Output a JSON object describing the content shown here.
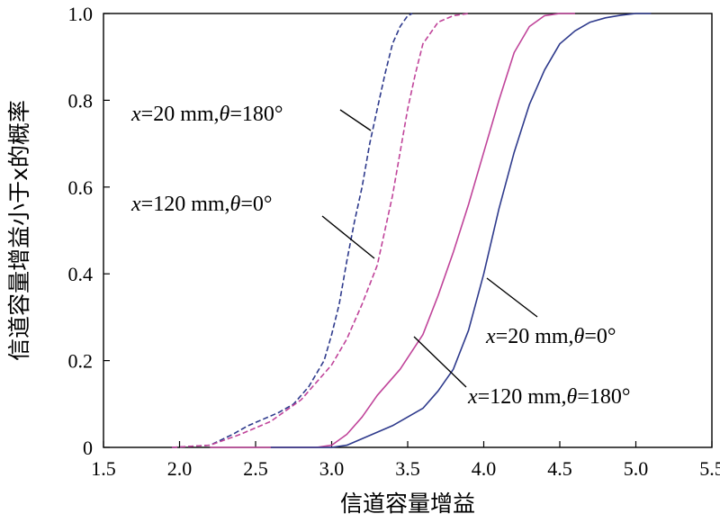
{
  "chart_data": {
    "type": "line",
    "title": "",
    "xlabel": "信道容量增益",
    "ylabel": "信道容量增益小于x的概率",
    "xlim": [
      1.5,
      5.5
    ],
    "ylim": [
      0,
      1.0
    ],
    "xticks": [
      "1.5",
      "2.0",
      "2.5",
      "3.0",
      "3.5",
      "4.0",
      "4.5",
      "5.0",
      "5.5"
    ],
    "yticks": [
      "0",
      "0.2",
      "0.4",
      "0.6",
      "0.8",
      "1.0"
    ],
    "grid": false,
    "legend": "none",
    "series": [
      {
        "color": "#2e3a8c",
        "dash": "dashed",
        "label_text": {
          "x_var": "x",
          "eq1": "=20 mm,",
          "theta": "θ",
          "eq2": "=180°"
        },
        "x": [
          1.95,
          2.2,
          2.35,
          2.45,
          2.55,
          2.65,
          2.75,
          2.85,
          2.95,
          3.0,
          3.05,
          3.1,
          3.15,
          3.2,
          3.25,
          3.3,
          3.35,
          3.4,
          3.45,
          3.5,
          3.53
        ],
        "y": [
          0.0,
          0.005,
          0.03,
          0.05,
          0.065,
          0.08,
          0.1,
          0.14,
          0.2,
          0.26,
          0.33,
          0.43,
          0.52,
          0.6,
          0.7,
          0.78,
          0.86,
          0.93,
          0.97,
          0.995,
          1.0
        ]
      },
      {
        "color": "#c0449a",
        "dash": "dashed",
        "label_text": {
          "x_var": "x",
          "eq1": "=120 mm,",
          "theta": "θ",
          "eq2": "=0°"
        },
        "x": [
          1.95,
          2.2,
          2.4,
          2.6,
          2.8,
          2.9,
          3.0,
          3.1,
          3.2,
          3.3,
          3.4,
          3.5,
          3.55,
          3.6,
          3.7,
          3.8,
          3.9
        ],
        "y": [
          0.0,
          0.005,
          0.03,
          0.06,
          0.11,
          0.15,
          0.19,
          0.25,
          0.33,
          0.42,
          0.58,
          0.78,
          0.86,
          0.93,
          0.98,
          0.995,
          1.0
        ]
      },
      {
        "color": "#c0449a",
        "dash": "solid",
        "label_text": {
          "x_var": "x",
          "eq1": "=20 mm,",
          "theta": "θ",
          "eq2": "=0°"
        },
        "x": [
          2.2,
          2.9,
          3.0,
          3.1,
          3.2,
          3.3,
          3.45,
          3.6,
          3.7,
          3.8,
          3.9,
          4.0,
          4.1,
          4.2,
          4.3,
          4.4,
          4.5,
          4.6
        ],
        "y": [
          0.0,
          0.0,
          0.005,
          0.03,
          0.07,
          0.12,
          0.18,
          0.26,
          0.35,
          0.45,
          0.56,
          0.68,
          0.8,
          0.91,
          0.97,
          0.995,
          1.0,
          1.0
        ]
      },
      {
        "color": "#2e3a8c",
        "dash": "solid",
        "label_text": {
          "x_var": "x",
          "eq1": "=120 mm,",
          "theta": "θ",
          "eq2": "=180°"
        },
        "x": [
          2.6,
          3.0,
          3.1,
          3.2,
          3.4,
          3.6,
          3.7,
          3.8,
          3.9,
          4.0,
          4.1,
          4.2,
          4.3,
          4.4,
          4.5,
          4.6,
          4.7,
          4.8,
          4.9,
          5.0,
          5.1
        ],
        "y": [
          0.0,
          0.0,
          0.005,
          0.02,
          0.05,
          0.09,
          0.13,
          0.18,
          0.27,
          0.4,
          0.55,
          0.68,
          0.79,
          0.87,
          0.93,
          0.96,
          0.98,
          0.99,
          0.996,
          1.0,
          1.0
        ]
      }
    ]
  },
  "colors": {
    "axis": "#000000",
    "background": "#ffffff"
  }
}
